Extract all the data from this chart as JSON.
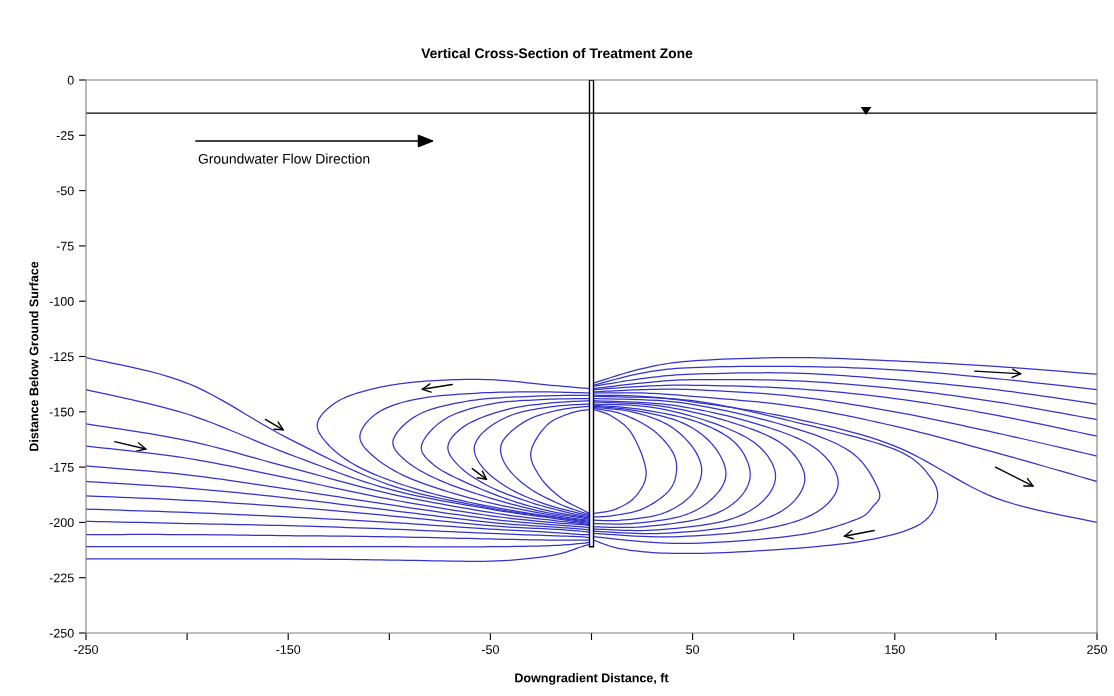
{
  "chart_data": {
    "type": "line",
    "title": "Vertical Cross-Section of Treatment Zone",
    "xlabel": "Downgradient Distance, ft",
    "ylabel": "Distance Below Ground Surface",
    "annotations": [
      "Groundwater Flow Direction"
    ],
    "xlim": [
      -250,
      250
    ],
    "ylim": [
      -250,
      0
    ],
    "xticks": [
      -250,
      {
        "value": -200,
        "label": null
      },
      -150,
      {
        "value": -100,
        "label": null
      },
      -50,
      {
        "value": 0,
        "label": null
      },
      50,
      {
        "value": 100,
        "label": null
      },
      150,
      {
        "value": 200,
        "label": null
      },
      250
    ],
    "yticks": [
      -250,
      -225,
      -200,
      -175,
      -150,
      -125,
      -100,
      -75,
      -50,
      -25,
      0
    ],
    "marker": "none",
    "line_style": "solid",
    "ref_lines": [
      {
        "axis": "y",
        "value": -15,
        "color": "#000000",
        "line_style": "solid"
      }
    ],
    "series": [
      {
        "type": "bar",
        "color": "#000000",
        "x": [
          0
        ],
        "values": [
          -211
        ]
      },
      {
        "color": "#3333cc",
        "x": [
          -250,
          -200,
          -150,
          -100,
          -50,
          -20,
          -5,
          -1
        ],
        "values": [
          -125.5,
          -137,
          -162,
          -183,
          -193.5,
          -197.5,
          -199.5,
          -200
        ]
      },
      {
        "color": "#3333cc",
        "x": [
          -250,
          -200,
          -150,
          -100,
          -50,
          -20,
          -5,
          -1
        ],
        "values": [
          -140,
          -151,
          -169,
          -185,
          -194,
          -198,
          -200,
          -200.5
        ]
      },
      {
        "color": "#3333cc",
        "x": [
          -250,
          -200,
          -150,
          -100,
          -50,
          -20,
          -5,
          -1
        ],
        "values": [
          -155.5,
          -163,
          -175,
          -187,
          -195.5,
          -199,
          -200.5,
          -201
        ]
      },
      {
        "color": "#3333cc",
        "x": [
          -250,
          -200,
          -150,
          -100,
          -50,
          -20,
          -5,
          -1
        ],
        "values": [
          -165.5,
          -171,
          -180,
          -189.5,
          -197,
          -200,
          -201,
          -201.5
        ]
      },
      {
        "color": "#3333cc",
        "x": [
          -250,
          -200,
          -150,
          -100,
          -50,
          -20,
          -5,
          -1
        ],
        "values": [
          -174.5,
          -178.5,
          -185,
          -192,
          -198.5,
          -201,
          -202,
          -202.5
        ]
      },
      {
        "color": "#3333cc",
        "x": [
          -250,
          -200,
          -150,
          -100,
          -50,
          -20,
          -5,
          -1
        ],
        "values": [
          -181.5,
          -184.5,
          -189,
          -194.5,
          -200,
          -202,
          -203,
          -203.5
        ]
      },
      {
        "color": "#3333cc",
        "x": [
          -250,
          -200,
          -150,
          -100,
          -50,
          -20,
          -5,
          -1
        ],
        "values": [
          -188,
          -190,
          -193,
          -197,
          -201.5,
          -203,
          -204,
          -204.5
        ]
      },
      {
        "color": "#3333cc",
        "x": [
          -250,
          -200,
          -150,
          -100,
          -50,
          -20,
          -5,
          -1
        ],
        "values": [
          -194,
          -195.5,
          -197.5,
          -200,
          -203,
          -204.5,
          -205.5,
          -205.5
        ]
      },
      {
        "color": "#3333cc",
        "x": [
          -250,
          -200,
          -150,
          -100,
          -50,
          -20,
          -5,
          -1
        ],
        "values": [
          -199.5,
          -200.5,
          -201.5,
          -203,
          -205,
          -206,
          -206.5,
          -207
        ]
      },
      {
        "color": "#3333cc",
        "x": [
          -250,
          -200,
          -150,
          -100,
          -50,
          -20,
          -5,
          -1
        ],
        "values": [
          -205.5,
          -205.5,
          -206,
          -206.5,
          -207.5,
          -208,
          -208,
          -208
        ]
      },
      {
        "color": "#3333cc",
        "x": [
          -250,
          -200,
          -150,
          -100,
          -50,
          -20,
          -5,
          -1
        ],
        "values": [
          -211,
          -211,
          -211,
          -211,
          -211,
          -210.5,
          -209.5,
          -209
        ]
      },
      {
        "color": "#3333cc",
        "x": [
          -250,
          -200,
          -150,
          -100,
          -50,
          -20,
          -5,
          -1
        ],
        "values": [
          -216.5,
          -216.5,
          -216.5,
          -217,
          -217.5,
          -215,
          -211,
          -210
        ]
      },
      {
        "color": "#3333cc",
        "x": [
          -1,
          -20,
          -50,
          -80,
          -105,
          -125,
          -135.5,
          -130,
          -115,
          -90,
          -60,
          -30,
          -10,
          -1
        ],
        "values": [
          -139.5,
          -138,
          -135.5,
          -136,
          -139,
          -145,
          -155,
          -165,
          -175,
          -184,
          -191,
          -196,
          -198.5,
          -199.5
        ]
      },
      {
        "color": "#3333cc",
        "x": [
          -1,
          -25,
          -55,
          -85,
          -105,
          -114.5,
          -108,
          -90,
          -60,
          -30,
          -10,
          -1
        ],
        "values": [
          -141.5,
          -141,
          -141.5,
          -144,
          -150,
          -160.5,
          -170,
          -180,
          -189,
          -195,
          -198,
          -199
        ]
      },
      {
        "color": "#3333cc",
        "x": [
          -1,
          -30,
          -60,
          -85,
          -98,
          -92,
          -75,
          -50,
          -25,
          -8,
          -1
        ],
        "values": [
          -142.5,
          -143,
          -145,
          -151,
          -162.5,
          -172,
          -181,
          -189,
          -195,
          -197.5,
          -198.5
        ]
      },
      {
        "color": "#3333cc",
        "x": [
          -1,
          -25,
          -50,
          -72,
          -84,
          -78,
          -62,
          -40,
          -20,
          -1
        ],
        "values": [
          -144,
          -144.5,
          -146.5,
          -153,
          -165,
          -174,
          -182,
          -190,
          -195,
          -198
        ]
      },
      {
        "color": "#3333cc",
        "x": [
          -1,
          -20,
          -42,
          -62,
          -71,
          -65,
          -50,
          -30,
          -12,
          -1
        ],
        "values": [
          -145,
          -146,
          -149,
          -156,
          -165.5,
          -175,
          -184,
          -191,
          -195.5,
          -197.5
        ]
      },
      {
        "color": "#3333cc",
        "x": [
          -1,
          -18,
          -38,
          -52,
          -58,
          -53,
          -40,
          -22,
          -1
        ],
        "values": [
          -146.5,
          -147.5,
          -151,
          -158,
          -166.5,
          -176,
          -185,
          -192,
          -197
        ]
      },
      {
        "color": "#3333cc",
        "x": [
          -1,
          -15,
          -30,
          -41,
          -45,
          -41,
          -30,
          -15,
          -1
        ],
        "values": [
          -147.5,
          -149,
          -153,
          -160,
          -167,
          -176,
          -185,
          -192,
          -196.5
        ]
      },
      {
        "color": "#3333cc",
        "x": [
          -1,
          -10,
          -22,
          -30,
          -25,
          -15,
          -5,
          -1
        ],
        "values": [
          -149,
          -150.5,
          -156,
          -168.5,
          -180,
          -189,
          -194,
          -196
        ]
      },
      {
        "color": "#3333cc",
        "x": [
          1,
          25,
          50,
          100,
          150,
          200,
          250
        ],
        "values": [
          -137,
          -130.5,
          -127,
          -125.5,
          -127,
          -129.5,
          -133
        ]
      },
      {
        "color": "#3333cc",
        "x": [
          1,
          25,
          50,
          100,
          150,
          200,
          250
        ],
        "values": [
          -138,
          -132.5,
          -130,
          -129.5,
          -131,
          -135,
          -140
        ]
      },
      {
        "color": "#3333cc",
        "x": [
          1,
          25,
          50,
          100,
          150,
          200,
          250
        ],
        "values": [
          -138.5,
          -135,
          -133,
          -132.5,
          -135.5,
          -140,
          -146.5
        ]
      },
      {
        "color": "#3333cc",
        "x": [
          1,
          25,
          50,
          100,
          150,
          200,
          250
        ],
        "values": [
          -139.5,
          -137,
          -135.5,
          -136,
          -139.5,
          -145.5,
          -153.5
        ]
      },
      {
        "color": "#3333cc",
        "x": [
          1,
          25,
          50,
          100,
          150,
          200,
          250
        ],
        "values": [
          -140,
          -138.5,
          -138,
          -139.5,
          -144,
          -151.5,
          -161
        ]
      },
      {
        "color": "#3333cc",
        "x": [
          1,
          25,
          50,
          100,
          150,
          200,
          250
        ],
        "values": [
          -141,
          -140,
          -140,
          -143,
          -150,
          -159.5,
          -170
        ]
      },
      {
        "color": "#3333cc",
        "x": [
          1,
          25,
          50,
          100,
          150,
          200,
          250
        ],
        "values": [
          -141.5,
          -141.5,
          -143,
          -147.5,
          -156.5,
          -168.5,
          -181.5
        ]
      },
      {
        "color": "#3333cc",
        "x": [
          1,
          25,
          50,
          100,
          150,
          200,
          250
        ],
        "values": [
          -142.5,
          -143,
          -145.5,
          -153,
          -165.5,
          -189,
          -200
        ]
      },
      {
        "color": "#3333cc",
        "x": [
          1,
          10,
          20,
          27,
          22,
          12,
          1
        ],
        "values": [
          -149,
          -152,
          -160,
          -177,
          -188,
          -194,
          -196
        ]
      },
      {
        "color": "#3333cc",
        "x": [
          1,
          15,
          30,
          40,
          42,
          38,
          25,
          10,
          1
        ],
        "values": [
          -148.5,
          -151,
          -158,
          -168,
          -177,
          -186,
          -194,
          -197,
          -197.5
        ]
      },
      {
        "color": "#3333cc",
        "x": [
          1,
          20,
          38,
          50,
          54.5,
          49,
          35,
          15,
          1
        ],
        "values": [
          -148,
          -150,
          -156,
          -166,
          -177,
          -188,
          -196,
          -199,
          -199
        ]
      },
      {
        "color": "#3333cc",
        "x": [
          1,
          22,
          45,
          60,
          66.5,
          60,
          45,
          20,
          1
        ],
        "values": [
          -147.5,
          -149.5,
          -155,
          -165,
          -178,
          -189,
          -197,
          -200.5,
          -200.5
        ]
      },
      {
        "color": "#3333cc",
        "x": [
          1,
          25,
          52,
          71,
          78.5,
          72,
          55,
          25,
          1
        ],
        "values": [
          -147,
          -149,
          -154.5,
          -164,
          -178,
          -190,
          -198,
          -202,
          -202
        ]
      },
      {
        "color": "#3333cc",
        "x": [
          1,
          30,
          60,
          82,
          91,
          84,
          65,
          30,
          1
        ],
        "values": [
          -146.5,
          -148,
          -155,
          -165,
          -178.5,
          -191,
          -199.5,
          -203.5,
          -203
        ]
      },
      {
        "color": "#3333cc",
        "x": [
          1,
          35,
          70,
          95,
          105.5,
          97,
          75,
          35,
          1
        ],
        "values": [
          -145.5,
          -147.5,
          -155,
          -165,
          -179.5,
          -193,
          -201,
          -205,
          -204
        ]
      },
      {
        "color": "#3333cc",
        "x": [
          1,
          40,
          80,
          110,
          122,
          112,
          85,
          40,
          1
        ],
        "values": [
          -145,
          -147,
          -155,
          -166,
          -181.5,
          -195,
          -203,
          -206.5,
          -205
        ]
      },
      {
        "color": "#3333cc",
        "x": [
          1,
          45,
          95,
          128,
          142,
          139,
          130,
          100,
          45,
          1
        ],
        "values": [
          -144,
          -146,
          -156,
          -168,
          -185.5,
          -193,
          -199,
          -206,
          -209.5,
          -206.5
        ]
      },
      {
        "color": "#3333cc",
        "x": [
          1,
          50,
          100,
          150,
          168,
          170.5,
          160,
          130,
          80,
          40,
          15,
          1
        ],
        "values": [
          -143,
          -145,
          -154.5,
          -167,
          -180,
          -191.5,
          -202,
          -209,
          -213,
          -214,
          -212,
          -208
        ]
      }
    ]
  }
}
